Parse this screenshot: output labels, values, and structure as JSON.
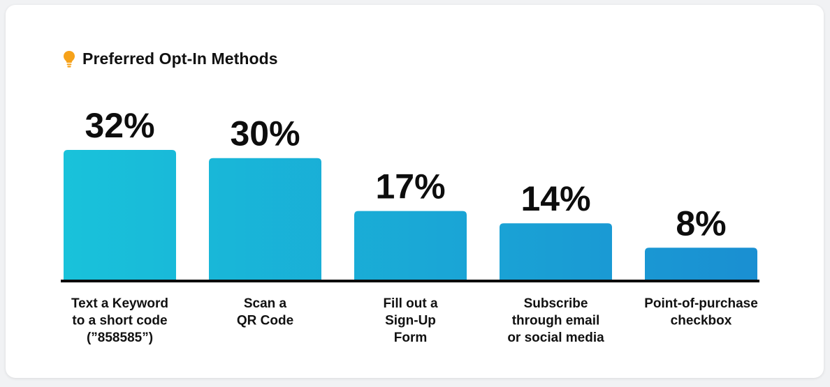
{
  "chart_data": {
    "type": "bar",
    "title": "Preferred Opt-In Methods",
    "categories": [
      [
        "Text a Keyword",
        "to a short code",
        "(”858585”)"
      ],
      [
        "Scan a",
        "QR Code"
      ],
      [
        "Fill out a",
        "Sign-Up",
        "Form"
      ],
      [
        "Subscribe",
        "through email",
        "or social media"
      ],
      [
        "Point-of-purchase",
        "checkbox"
      ]
    ],
    "values": [
      32,
      30,
      17,
      14,
      8
    ],
    "value_labels": [
      "32%",
      "30%",
      "17%",
      "14%",
      "8%"
    ],
    "ylim": [
      0,
      32
    ],
    "grid": false,
    "legend": "none"
  },
  "colors": {
    "bar_start": "#19c2da",
    "bar_end": "#1a8fd2",
    "baseline": "#0a0a0a",
    "bulb": "#f6a21a"
  },
  "icons": {
    "title_icon": "lightbulb-icon"
  }
}
